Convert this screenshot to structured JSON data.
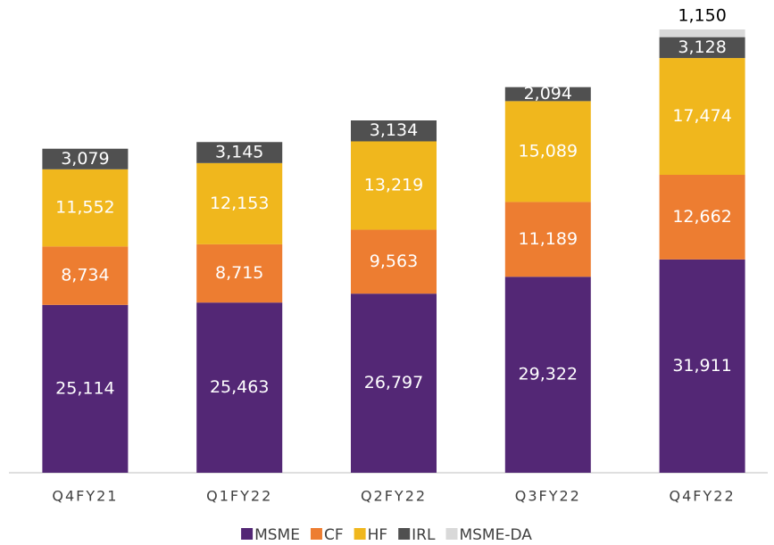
{
  "chart_data": {
    "type": "stacked_bar",
    "categories": [
      "Q4FY21",
      "Q1FY22",
      "Q2FY22",
      "Q3FY22",
      "Q4FY22"
    ],
    "series": [
      {
        "name": "MSME",
        "color": "#532775",
        "values": [
          25114,
          25463,
          26797,
          29322,
          31911
        ],
        "value_labels": [
          "25,114",
          "25,463",
          "26,797",
          "29,322",
          "31,911"
        ]
      },
      {
        "name": "CF",
        "color": "#ed7d31",
        "values": [
          8734,
          8715,
          9563,
          11189,
          12662
        ],
        "value_labels": [
          "8,734",
          "8,715",
          "9,563",
          "11,189",
          "12,662"
        ]
      },
      {
        "name": "HF",
        "color": "#f0b71d",
        "values": [
          11552,
          12153,
          13219,
          15089,
          17474
        ],
        "value_labels": [
          "11,552",
          "12,153",
          "13,219",
          "15,089",
          "17,474"
        ]
      },
      {
        "name": "IRL",
        "color": "#505050",
        "values": [
          3079,
          3145,
          3134,
          2094,
          3128
        ],
        "value_labels": [
          "3,079",
          "3,145",
          "3,134",
          "2,094",
          "3,128"
        ]
      },
      {
        "name": "MSME-DA",
        "color": "#d9d9d9",
        "values": [
          null,
          null,
          null,
          null,
          1150
        ],
        "value_labels": [
          null,
          null,
          null,
          null,
          "1,150"
        ]
      }
    ]
  }
}
